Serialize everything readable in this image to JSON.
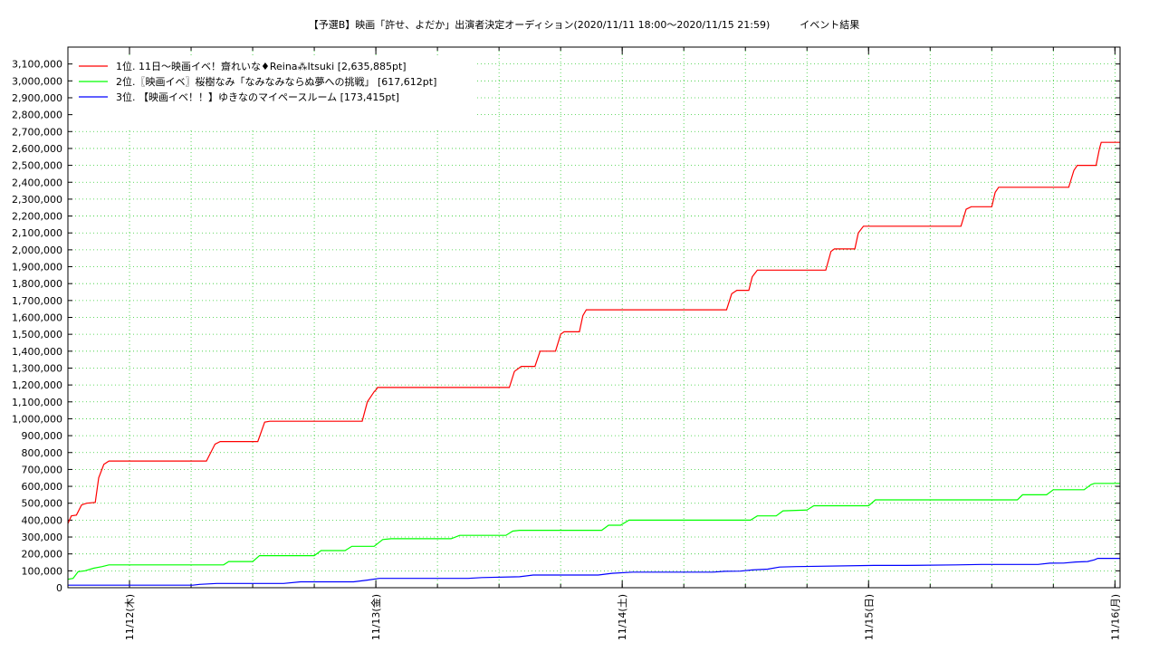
{
  "chart_data": {
    "type": "line",
    "title": "【予選B】映画「許せ、よだか」出演者決定オーディション(2020/11/11 18:00〜2020/11/15 21:59)　　　イベント結果",
    "xlabel": "",
    "ylabel": "",
    "x_range": [
      "2020-11-11 18:00",
      "2020-11-16 00:30"
    ],
    "ylim": [
      0,
      3200000
    ],
    "y_ticks": [
      "0",
      "100,000",
      "200,000",
      "300,000",
      "400,000",
      "500,000",
      "600,000",
      "700,000",
      "800,000",
      "900,000",
      "1,000,000",
      "1,100,000",
      "1,200,000",
      "1,300,000",
      "1,400,000",
      "1,500,000",
      "1,600,000",
      "1,700,000",
      "1,800,000",
      "1,900,000",
      "2,000,000",
      "2,100,000",
      "2,200,000",
      "2,300,000",
      "2,400,000",
      "2,500,000",
      "2,600,000",
      "2,700,000",
      "2,800,000",
      "2,900,000",
      "3,000,000",
      "3,100,000"
    ],
    "y_tick_values": [
      0,
      100000,
      200000,
      300000,
      400000,
      500000,
      600000,
      700000,
      800000,
      900000,
      1000000,
      1100000,
      1200000,
      1300000,
      1400000,
      1500000,
      1600000,
      1700000,
      1800000,
      1900000,
      2000000,
      2100000,
      2200000,
      2300000,
      2400000,
      2500000,
      2600000,
      2700000,
      2800000,
      2900000,
      3000000,
      3100000
    ],
    "x_ticks": [
      {
        "x": "2020-11-12 00:00",
        "label": "11/12(木)"
      },
      {
        "x": "2020-11-13 00:00",
        "label": "11/13(金)"
      },
      {
        "x": "2020-11-14 00:00",
        "label": "11/14(土)"
      },
      {
        "x": "2020-11-15 00:00",
        "label": "11/15(日)"
      },
      {
        "x": "2020-11-16 00:00",
        "label": "11/16(月)"
      }
    ],
    "grid": true,
    "legend_position": "top-left",
    "series": [
      {
        "name": "1位. 11日〜映画イベ！齋れいな♦Reina⁂Itsuki [2,635,885pt]",
        "color": "#ff0000",
        "points": [
          [
            "2020-11-11 18:00",
            380000
          ],
          [
            "2020-11-11 18:20",
            425000
          ],
          [
            "2020-11-11 18:50",
            430000
          ],
          [
            "2020-11-11 19:20",
            490000
          ],
          [
            "2020-11-11 19:50",
            500000
          ],
          [
            "2020-11-11 20:40",
            505000
          ],
          [
            "2020-11-11 21:00",
            650000
          ],
          [
            "2020-11-11 21:30",
            730000
          ],
          [
            "2020-11-11 22:00",
            750000
          ],
          [
            "2020-11-12 07:30",
            750000
          ],
          [
            "2020-11-12 08:20",
            850000
          ],
          [
            "2020-11-12 08:50",
            865000
          ],
          [
            "2020-11-12 12:30",
            865000
          ],
          [
            "2020-11-12 13:10",
            980000
          ],
          [
            "2020-11-12 13:40",
            985000
          ],
          [
            "2020-11-12 22:40",
            985000
          ],
          [
            "2020-11-12 23:10",
            1100000
          ],
          [
            "2020-11-12 23:50",
            1160000
          ],
          [
            "2020-11-13 00:00",
            1170000
          ],
          [
            "2020-11-13 00:10",
            1185000
          ],
          [
            "2020-11-13 13:00",
            1185000
          ],
          [
            "2020-11-13 13:30",
            1280000
          ],
          [
            "2020-11-13 14:10",
            1310000
          ],
          [
            "2020-11-13 15:30",
            1310000
          ],
          [
            "2020-11-13 16:00",
            1400000
          ],
          [
            "2020-11-13 17:30",
            1400000
          ],
          [
            "2020-11-13 18:00",
            1500000
          ],
          [
            "2020-11-13 18:20",
            1515000
          ],
          [
            "2020-11-13 19:50",
            1515000
          ],
          [
            "2020-11-13 20:10",
            1610000
          ],
          [
            "2020-11-13 20:30",
            1645000
          ],
          [
            "2020-11-14 10:10",
            1645000
          ],
          [
            "2020-11-14 10:40",
            1740000
          ],
          [
            "2020-11-14 11:10",
            1760000
          ],
          [
            "2020-11-14 12:20",
            1760000
          ],
          [
            "2020-11-14 12:40",
            1840000
          ],
          [
            "2020-11-14 13:10",
            1880000
          ],
          [
            "2020-11-14 19:50",
            1880000
          ],
          [
            "2020-11-14 20:20",
            1990000
          ],
          [
            "2020-11-14 20:40",
            2005000
          ],
          [
            "2020-11-14 22:40",
            2005000
          ],
          [
            "2020-11-14 23:00",
            2100000
          ],
          [
            "2020-11-14 23:30",
            2140000
          ],
          [
            "2020-11-15 09:00",
            2140000
          ],
          [
            "2020-11-15 09:30",
            2240000
          ],
          [
            "2020-11-15 10:00",
            2255000
          ],
          [
            "2020-11-15 12:00",
            2255000
          ],
          [
            "2020-11-15 12:20",
            2340000
          ],
          [
            "2020-11-15 12:40",
            2370000
          ],
          [
            "2020-11-15 19:30",
            2370000
          ],
          [
            "2020-11-15 20:00",
            2470000
          ],
          [
            "2020-11-15 20:20",
            2500000
          ],
          [
            "2020-11-15 22:10",
            2500000
          ],
          [
            "2020-11-15 22:30",
            2600000
          ],
          [
            "2020-11-15 22:40",
            2635885
          ],
          [
            "2020-11-16 00:30",
            2635885
          ]
        ]
      },
      {
        "name": "2位.〖映画イベ〗桜樹なみ「なみなみならぬ夢への挑戦」 [617,612pt]",
        "color": "#00ff00",
        "points": [
          [
            "2020-11-11 18:00",
            50000
          ],
          [
            "2020-11-11 18:30",
            55000
          ],
          [
            "2020-11-11 19:00",
            95000
          ],
          [
            "2020-11-11 19:40",
            100000
          ],
          [
            "2020-11-11 20:30",
            115000
          ],
          [
            "2020-11-11 21:20",
            125000
          ],
          [
            "2020-11-11 22:00",
            135000
          ],
          [
            "2020-11-12 09:10",
            135000
          ],
          [
            "2020-11-12 09:40",
            155000
          ],
          [
            "2020-11-12 12:00",
            155000
          ],
          [
            "2020-11-12 12:40",
            190000
          ],
          [
            "2020-11-12 18:00",
            190000
          ],
          [
            "2020-11-12 18:40",
            220000
          ],
          [
            "2020-11-12 21:00",
            220000
          ],
          [
            "2020-11-12 21:40",
            245000
          ],
          [
            "2020-11-12 23:50",
            245000
          ],
          [
            "2020-11-13 00:40",
            285000
          ],
          [
            "2020-11-13 01:30",
            290000
          ],
          [
            "2020-11-13 07:20",
            290000
          ],
          [
            "2020-11-13 08:10",
            310000
          ],
          [
            "2020-11-13 12:40",
            310000
          ],
          [
            "2020-11-13 13:20",
            335000
          ],
          [
            "2020-11-13 14:00",
            340000
          ],
          [
            "2020-11-13 22:00",
            340000
          ],
          [
            "2020-11-13 22:40",
            370000
          ],
          [
            "2020-11-13 23:50",
            370000
          ],
          [
            "2020-11-14 00:40",
            400000
          ],
          [
            "2020-11-14 01:40",
            400000
          ],
          [
            "2020-11-14 12:30",
            400000
          ],
          [
            "2020-11-14 13:10",
            425000
          ],
          [
            "2020-11-14 15:00",
            425000
          ],
          [
            "2020-11-14 15:40",
            455000
          ],
          [
            "2020-11-14 18:00",
            460000
          ],
          [
            "2020-11-14 18:40",
            485000
          ],
          [
            "2020-11-15 00:00",
            485000
          ],
          [
            "2020-11-15 00:40",
            520000
          ],
          [
            "2020-11-15 14:30",
            520000
          ],
          [
            "2020-11-15 15:00",
            550000
          ],
          [
            "2020-11-15 17:20",
            550000
          ],
          [
            "2020-11-15 18:00",
            580000
          ],
          [
            "2020-11-15 21:00",
            580000
          ],
          [
            "2020-11-15 21:40",
            610000
          ],
          [
            "2020-11-15 22:00",
            617612
          ],
          [
            "2020-11-16 00:30",
            617612
          ]
        ]
      },
      {
        "name": "3位. 【映画イベ！！】ゆきなのマイペースルーム [173,415pt]",
        "color": "#0000ff",
        "points": [
          [
            "2020-11-11 18:00",
            15000
          ],
          [
            "2020-11-11 21:00",
            15000
          ],
          [
            "2020-11-12 06:10",
            15000
          ],
          [
            "2020-11-12 06:50",
            20000
          ],
          [
            "2020-11-12 08:30",
            25000
          ],
          [
            "2020-11-12 15:00",
            25000
          ],
          [
            "2020-11-12 16:40",
            35000
          ],
          [
            "2020-11-12 21:50",
            35000
          ],
          [
            "2020-11-12 23:10",
            45000
          ],
          [
            "2020-11-13 00:20",
            55000
          ],
          [
            "2020-11-13 09:00",
            55000
          ],
          [
            "2020-11-13 10:20",
            60000
          ],
          [
            "2020-11-13 14:00",
            65000
          ],
          [
            "2020-11-13 15:20",
            75000
          ],
          [
            "2020-11-13 21:40",
            75000
          ],
          [
            "2020-11-13 23:00",
            85000
          ],
          [
            "2020-11-14 01:00",
            92000
          ],
          [
            "2020-11-14 08:50",
            92000
          ],
          [
            "2020-11-14 10:00",
            97000
          ],
          [
            "2020-11-14 11:30",
            98000
          ],
          [
            "2020-11-14 12:40",
            105000
          ],
          [
            "2020-11-14 14:10",
            110000
          ],
          [
            "2020-11-14 15:20",
            122000
          ],
          [
            "2020-11-14 17:00",
            125000
          ],
          [
            "2020-11-15 00:30",
            132000
          ],
          [
            "2020-11-15 03:40",
            132000
          ],
          [
            "2020-11-15 08:30",
            135000
          ],
          [
            "2020-11-15 11:00",
            138000
          ],
          [
            "2020-11-15 16:30",
            138000
          ],
          [
            "2020-11-15 17:40",
            145000
          ],
          [
            "2020-11-15 19:00",
            146000
          ],
          [
            "2020-11-15 20:10",
            152000
          ],
          [
            "2020-11-15 21:20",
            155000
          ],
          [
            "2020-11-15 22:00",
            165000
          ],
          [
            "2020-11-15 22:20",
            173415
          ],
          [
            "2020-11-16 00:30",
            173415
          ]
        ]
      }
    ]
  }
}
